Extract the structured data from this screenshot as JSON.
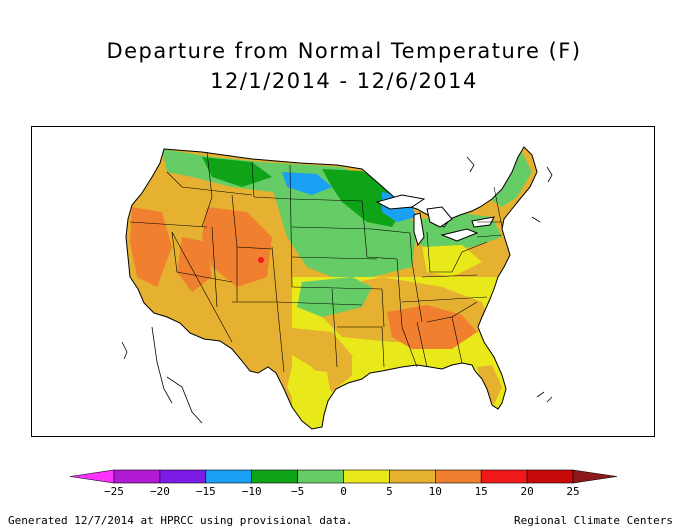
{
  "title": {
    "line1": "Departure from Normal Temperature (F)",
    "line2": "12/1/2014 - 12/6/2014"
  },
  "legend": {
    "bins": [
      {
        "from": -30,
        "to": -25,
        "color": "#ff33ff"
      },
      {
        "from": -25,
        "to": -20,
        "color": "#b01ad4"
      },
      {
        "from": -20,
        "to": -15,
        "color": "#7c1ae6"
      },
      {
        "from": -15,
        "to": -10,
        "color": "#1aa0f5"
      },
      {
        "from": -10,
        "to": -5,
        "color": "#0fa318"
      },
      {
        "from": -5,
        "to": 0,
        "color": "#66cc66"
      },
      {
        "from": 0,
        "to": 5,
        "color": "#e8e81a"
      },
      {
        "from": 5,
        "to": 10,
        "color": "#e6b030"
      },
      {
        "from": 10,
        "to": 15,
        "color": "#f08030"
      },
      {
        "from": 15,
        "to": 20,
        "color": "#f01a1a"
      },
      {
        "from": 20,
        "to": 25,
        "color": "#c80a0a"
      },
      {
        "from": 25,
        "to": 30,
        "color": "#8c1a1a"
      }
    ],
    "tick_labels": [
      "−25",
      "−20",
      "−15",
      "−10",
      "−5",
      "0",
      "5",
      "10",
      "15",
      "20",
      "25"
    ],
    "tick_values": [
      -25,
      -20,
      -15,
      -10,
      -5,
      0,
      5,
      10,
      15,
      20,
      25
    ]
  },
  "footer": {
    "left": "Generated 12/7/2014 at HPRCC using provisional data.",
    "right": "Regional Climate Centers"
  }
}
